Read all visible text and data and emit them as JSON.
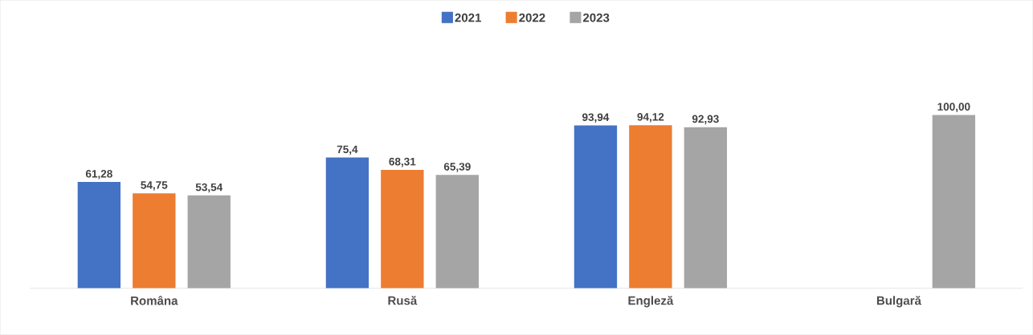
{
  "chart_data": {
    "type": "bar",
    "categories": [
      "Româna",
      "Rusă",
      "Engleză",
      "Bulgară"
    ],
    "series": [
      {
        "name": "2021",
        "color": "#4472c4",
        "values": [
          61.28,
          75.4,
          93.94,
          null
        ],
        "value_labels": [
          "61,28",
          "75,4",
          "93,94",
          null
        ]
      },
      {
        "name": "2022",
        "color": "#ed7d31",
        "values": [
          54.75,
          68.31,
          94.12,
          null
        ],
        "value_labels": [
          "54,75",
          "68,31",
          "94,12",
          null
        ]
      },
      {
        "name": "2023",
        "color": "#a5a5a5",
        "values": [
          53.54,
          65.39,
          92.93,
          100.0
        ],
        "value_labels": [
          "53,54",
          "65,39",
          "92,93",
          "100,00"
        ]
      }
    ],
    "legend": "top"
  }
}
